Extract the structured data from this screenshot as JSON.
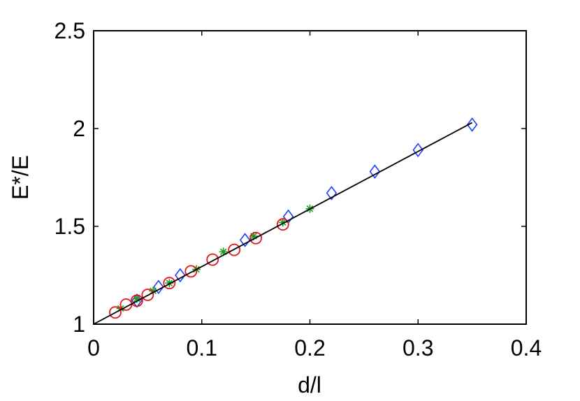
{
  "chart_data": {
    "type": "scatter",
    "xlabel": "d/l",
    "ylabel": "E*/E",
    "xlim": [
      0,
      0.4
    ],
    "ylim": [
      1,
      2.5
    ],
    "xticks": [
      0,
      0.1,
      0.2,
      0.3,
      0.4
    ],
    "xtick_labels": [
      "0",
      "0.1",
      "0.2",
      "0.3",
      "0.4"
    ],
    "yticks": [
      1,
      1.5,
      2,
      2.5
    ],
    "ytick_labels": [
      "1",
      "1.5",
      "2",
      "2.5"
    ],
    "grid": false,
    "legend": "none",
    "series": [
      {
        "marker": "diamond",
        "color": "#1f3fff",
        "x": [
          0.04,
          0.06,
          0.08,
          0.14,
          0.18,
          0.22,
          0.26,
          0.3,
          0.35
        ],
        "y": [
          1.12,
          1.19,
          1.25,
          1.43,
          1.55,
          1.67,
          1.78,
          1.89,
          2.02
        ]
      },
      {
        "marker": "asterisk",
        "color": "#1f9a1f",
        "x": [
          0.025,
          0.04,
          0.055,
          0.07,
          0.095,
          0.12,
          0.148,
          0.175,
          0.2
        ],
        "y": [
          1.08,
          1.13,
          1.17,
          1.21,
          1.28,
          1.37,
          1.45,
          1.52,
          1.59
        ]
      },
      {
        "marker": "circle",
        "color": "#e8141e",
        "x": [
          0.02,
          0.03,
          0.04,
          0.05,
          0.07,
          0.09,
          0.11,
          0.13,
          0.15,
          0.175
        ],
        "y": [
          1.06,
          1.1,
          1.12,
          1.15,
          1.21,
          1.27,
          1.33,
          1.38,
          1.44,
          1.51
        ]
      },
      {
        "type": "line",
        "color": "#000000",
        "x": [
          0,
          0.35
        ],
        "y": [
          1.0,
          2.03
        ]
      }
    ]
  }
}
